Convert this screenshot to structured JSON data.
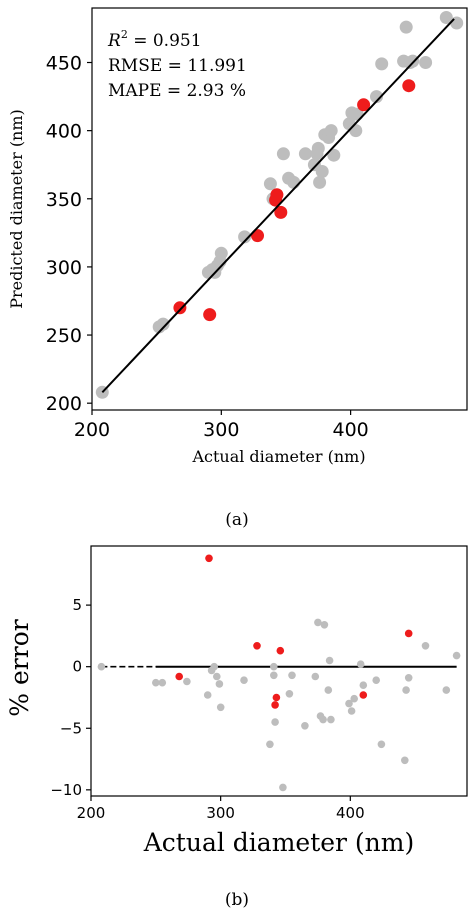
{
  "chart_data": [
    {
      "panel_label": "(a)",
      "type": "scatter",
      "xlabel": "Actual diameter (nm)",
      "ylabel": "Predicted diameter (nm)",
      "xlim": [
        200,
        490
      ],
      "ylim": [
        195,
        490
      ],
      "xticks": [
        200,
        300,
        400
      ],
      "yticks": [
        200,
        250,
        300,
        350,
        400,
        450
      ],
      "grid": false,
      "annotations": {
        "r2_prefix": "R",
        "r2_exp": "2",
        "r2_value": " = 0.951",
        "rmse": "RMSE = 11.991",
        "mape": "MAPE = 2.93 %"
      },
      "fit_line": {
        "x": [
          208,
          480
        ],
        "y": [
          208,
          482
        ],
        "color": "#000000"
      },
      "series": [
        {
          "role": "training",
          "color": "#bdbdbd",
          "points": [
            [
              208,
              208
            ],
            [
              252,
              256
            ],
            [
              255,
              258
            ],
            [
              290,
              296
            ],
            [
              293,
              298
            ],
            [
              295,
              296
            ],
            [
              297,
              301
            ],
            [
              299,
              304
            ],
            [
              300,
              310
            ],
            [
              318,
              322
            ],
            [
              338,
              361
            ],
            [
              340,
              350
            ],
            [
              348,
              383
            ],
            [
              352,
              365
            ],
            [
              356,
              362
            ],
            [
              365,
              383
            ],
            [
              372,
              375
            ],
            [
              374,
              383
            ],
            [
              375,
              387
            ],
            [
              376,
              362
            ],
            [
              378,
              370
            ],
            [
              380,
              397
            ],
            [
              383,
              395
            ],
            [
              385,
              400
            ],
            [
              387,
              382
            ],
            [
              399,
              405
            ],
            [
              401,
              413
            ],
            [
              404,
              400
            ],
            [
              405,
              412
            ],
            [
              420,
              425
            ],
            [
              424,
              449
            ],
            [
              441,
              451
            ],
            [
              443,
              476
            ],
            [
              446,
              450
            ],
            [
              448,
              451
            ],
            [
              458,
              450
            ],
            [
              474,
              483
            ],
            [
              482,
              479
            ]
          ]
        },
        {
          "role": "test",
          "color": "#ee1c1c",
          "points": [
            [
              268,
              270
            ],
            [
              291,
              265
            ],
            [
              328,
              323
            ],
            [
              342,
              349
            ],
            [
              343,
              353
            ],
            [
              346,
              340
            ],
            [
              410,
              419
            ],
            [
              445,
              433
            ]
          ]
        }
      ]
    },
    {
      "panel_label": "(b)",
      "type": "scatter",
      "xlabel": "Actual diameter (nm)",
      "ylabel": "% error",
      "xlim": [
        200,
        490
      ],
      "ylim": [
        -10.5,
        9.8
      ],
      "xticks": [
        200,
        300,
        400
      ],
      "yticks": [
        -10,
        -5,
        0,
        5
      ],
      "grid": false,
      "zero_line": {
        "dashed_x": [
          208,
          250
        ],
        "solid_x": [
          250,
          482
        ],
        "y": 0
      },
      "series": [
        {
          "role": "training",
          "color": "#bdbdbd",
          "points": [
            [
              208,
              0
            ],
            [
              250,
              -1.3
            ],
            [
              255,
              -1.3
            ],
            [
              274,
              -1.2
            ],
            [
              290,
              -2.3
            ],
            [
              293,
              -0.3
            ],
            [
              295,
              0
            ],
            [
              297,
              -0.8
            ],
            [
              299,
              -1.4
            ],
            [
              300,
              -3.3
            ],
            [
              318,
              -1.1
            ],
            [
              338,
              -6.3
            ],
            [
              341,
              -0.7
            ],
            [
              341,
              0
            ],
            [
              342,
              -4.5
            ],
            [
              348,
              -9.8
            ],
            [
              353,
              -2.2
            ],
            [
              355,
              -0.7
            ],
            [
              365,
              -4.8
            ],
            [
              373,
              -0.8
            ],
            [
              375,
              3.6
            ],
            [
              377,
              -4
            ],
            [
              379,
              -4.3
            ],
            [
              380,
              3.4
            ],
            [
              383,
              -1.9
            ],
            [
              384,
              0.5
            ],
            [
              385,
              -4.3
            ],
            [
              399,
              -3
            ],
            [
              401,
              -3.6
            ],
            [
              403,
              -2.6
            ],
            [
              408,
              0.2
            ],
            [
              410,
              -1.5
            ],
            [
              420,
              -1.1
            ],
            [
              424,
              -6.3
            ],
            [
              442,
              -7.6
            ],
            [
              443,
              -1.9
            ],
            [
              445,
              -0.9
            ],
            [
              458,
              1.7
            ],
            [
              474,
              -1.9
            ],
            [
              482,
              0.9
            ]
          ]
        },
        {
          "role": "test",
          "color": "#ee1c1c",
          "points": [
            [
              268,
              -0.8
            ],
            [
              291,
              8.8
            ],
            [
              328,
              1.7
            ],
            [
              342,
              -3.1
            ],
            [
              343,
              -2.5
            ],
            [
              346,
              1.3
            ],
            [
              410,
              -2.3
            ],
            [
              445,
              2.7
            ]
          ]
        }
      ]
    }
  ]
}
